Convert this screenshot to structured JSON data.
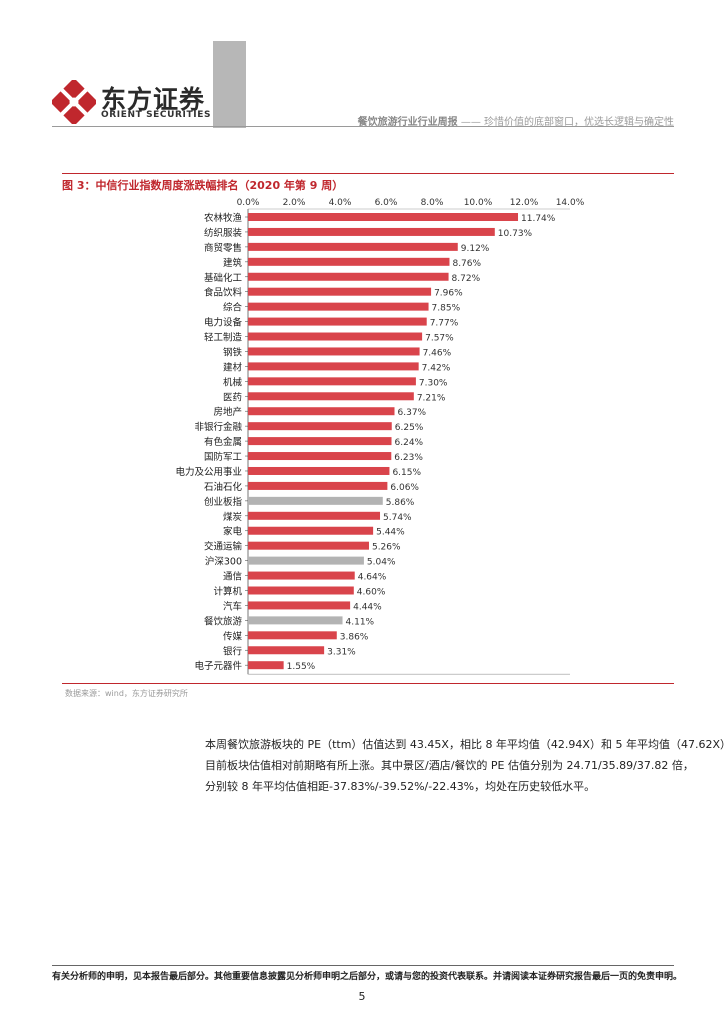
{
  "header": {
    "logo_cn": "东方证券",
    "logo_en": "ORIENT SECURITIES",
    "report_title": "餐饮旅游行业行业周报",
    "report_subtitle": "—— 珍惜价值的底部窗口，优选长逻辑与确定性"
  },
  "figure": {
    "caption": "图 3：中信行业指数周度涨跌幅排名（2020 年第 9 周）",
    "source": "数据来源：wind，东方证券研究所"
  },
  "colors": {
    "highlight": "#d9444b",
    "neutral": "#b3b3b3",
    "accent": "#c0272d"
  },
  "chart_data": {
    "type": "bar",
    "orientation": "horizontal",
    "title": "中信行业指数周度涨跌幅排名（2020 年第 9 周）",
    "xaxis_ticks": [
      "0.0%",
      "2.0%",
      "4.0%",
      "6.0%",
      "8.0%",
      "10.0%",
      "12.0%",
      "14.0%"
    ],
    "xlim": [
      0,
      14
    ],
    "categories": [
      "农林牧渔",
      "纺织服装",
      "商贸零售",
      "建筑",
      "基础化工",
      "食品饮料",
      "综合",
      "电力设备",
      "轻工制造",
      "钢铁",
      "建材",
      "机械",
      "医药",
      "房地产",
      "非银行金融",
      "有色金属",
      "国防军工",
      "电力及公用事业",
      "石油石化",
      "创业板指",
      "煤炭",
      "家电",
      "交通运输",
      "沪深300",
      "通信",
      "计算机",
      "汽车",
      "餐饮旅游",
      "传媒",
      "银行",
      "电子元器件"
    ],
    "values": [
      11.74,
      10.73,
      9.12,
      8.76,
      8.72,
      7.96,
      7.85,
      7.77,
      7.57,
      7.46,
      7.42,
      7.3,
      7.21,
      6.37,
      6.25,
      6.24,
      6.23,
      6.15,
      6.06,
      5.86,
      5.74,
      5.44,
      5.26,
      5.04,
      4.64,
      4.6,
      4.44,
      4.11,
      3.86,
      3.31,
      1.55
    ],
    "labels": [
      "11.74%",
      "10.73%",
      "9.12%",
      "8.76%",
      "8.72%",
      "7.96%",
      "7.85%",
      "7.77%",
      "7.57%",
      "7.46%",
      "7.42%",
      "7.30%",
      "7.21%",
      "6.37%",
      "6.25%",
      "6.24%",
      "6.23%",
      "6.15%",
      "6.06%",
      "5.86%",
      "5.74%",
      "5.44%",
      "5.26%",
      "5.04%",
      "4.64%",
      "4.60%",
      "4.44%",
      "4.11%",
      "3.86%",
      "3.31%",
      "1.55%"
    ],
    "highlighted_gray": [
      "创业板指",
      "沪深300",
      "餐饮旅游"
    ]
  },
  "paragraph": {
    "line1": "本周餐饮旅游板块的 PE（ttm）估值达到 43.45X，相比 8 年平均值（42.94X）和 5 年平均值（47.62X），",
    "line2": "目前板块估值相对前期略有所上涨。其中景区/酒店/餐饮的 PE 估值分别为 24.71/35.89/37.82 倍，",
    "line3": "分别较 8 年平均估值相距-37.83%/-39.52%/-22.43%，均处在历史较低水平。"
  },
  "footer": {
    "disclaimer": "有关分析师的申明，见本报告最后部分。其他重要信息披露见分析师申明之后部分，或请与您的投资代表联系。并请阅读本证券研究报告最后一页的免责申明。",
    "page_number": "5"
  }
}
